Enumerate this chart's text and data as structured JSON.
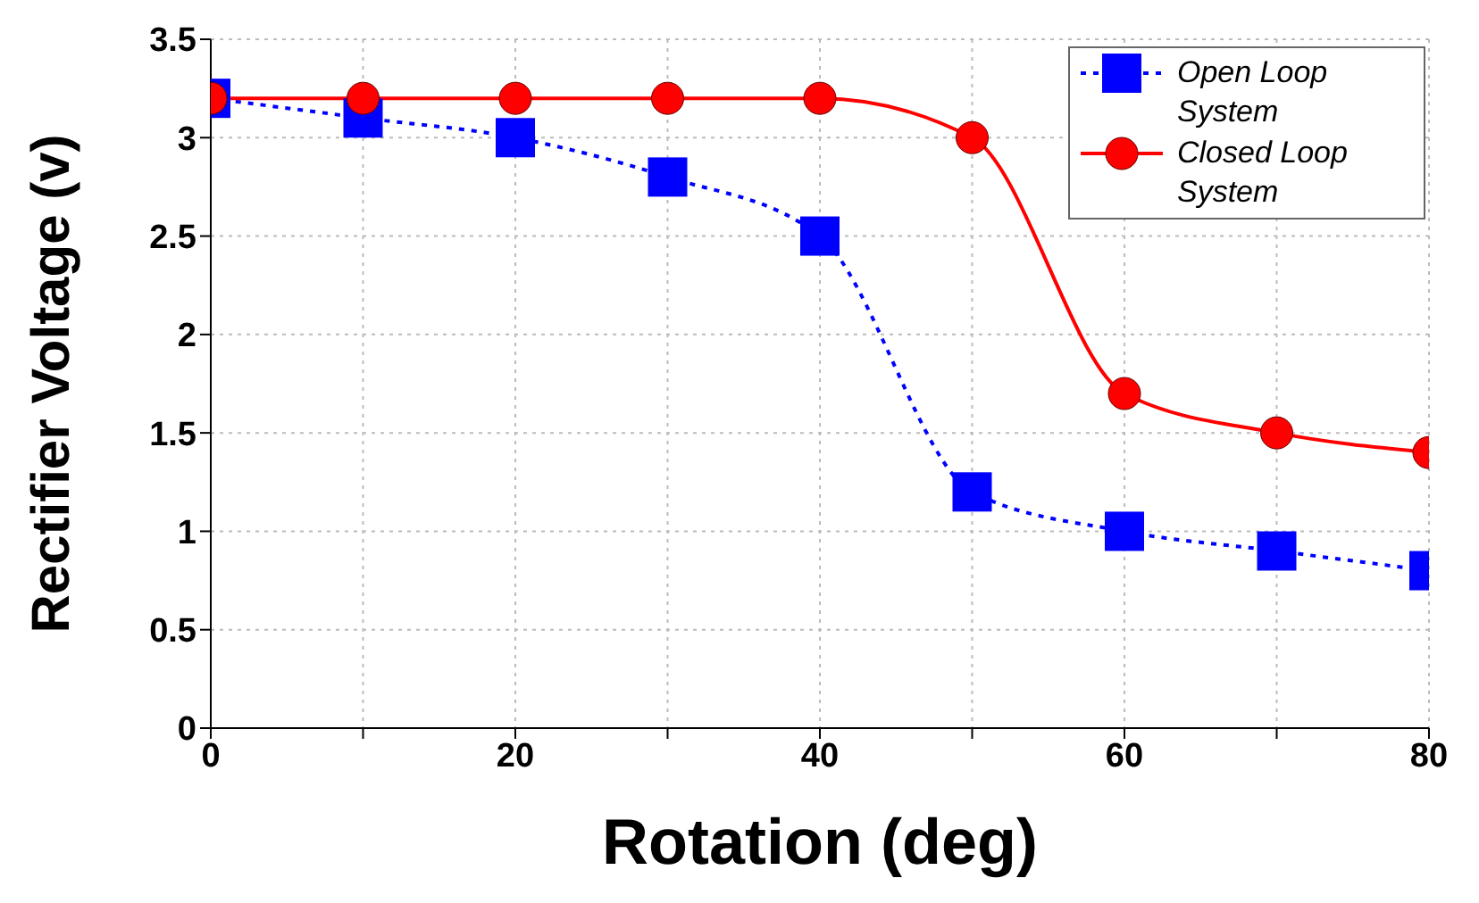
{
  "chart_data": {
    "type": "line",
    "xlabel": "Rotation (deg)",
    "ylabel": "Rectifier Voltage (v)",
    "x": [
      0,
      10,
      20,
      30,
      40,
      50,
      60,
      70,
      80
    ],
    "series": [
      {
        "name": "Open Loop System",
        "color": "#0000ff",
        "marker": "square",
        "line_style": "dotted",
        "values": [
          3.2,
          3.1,
          3.0,
          2.8,
          2.5,
          1.2,
          1.0,
          0.9,
          0.8
        ]
      },
      {
        "name": "Closed Loop System",
        "color": "#ff0000",
        "marker": "circle",
        "line_style": "solid",
        "values": [
          3.2,
          3.2,
          3.2,
          3.2,
          3.2,
          3.0,
          1.7,
          1.5,
          1.4
        ]
      }
    ],
    "xlim": [
      0,
      80
    ],
    "xticks": [
      0,
      {
        "value": 10,
        "label": null
      },
      20,
      {
        "value": 30,
        "label": null
      },
      40,
      {
        "value": 50,
        "label": null
      },
      60,
      {
        "value": 70,
        "label": null
      },
      80
    ],
    "ylim": [
      0,
      3.5
    ],
    "yticks": [
      0,
      0.5,
      1,
      1.5,
      2,
      2.5,
      3,
      3.5
    ],
    "grid": true,
    "legend": "top right"
  }
}
